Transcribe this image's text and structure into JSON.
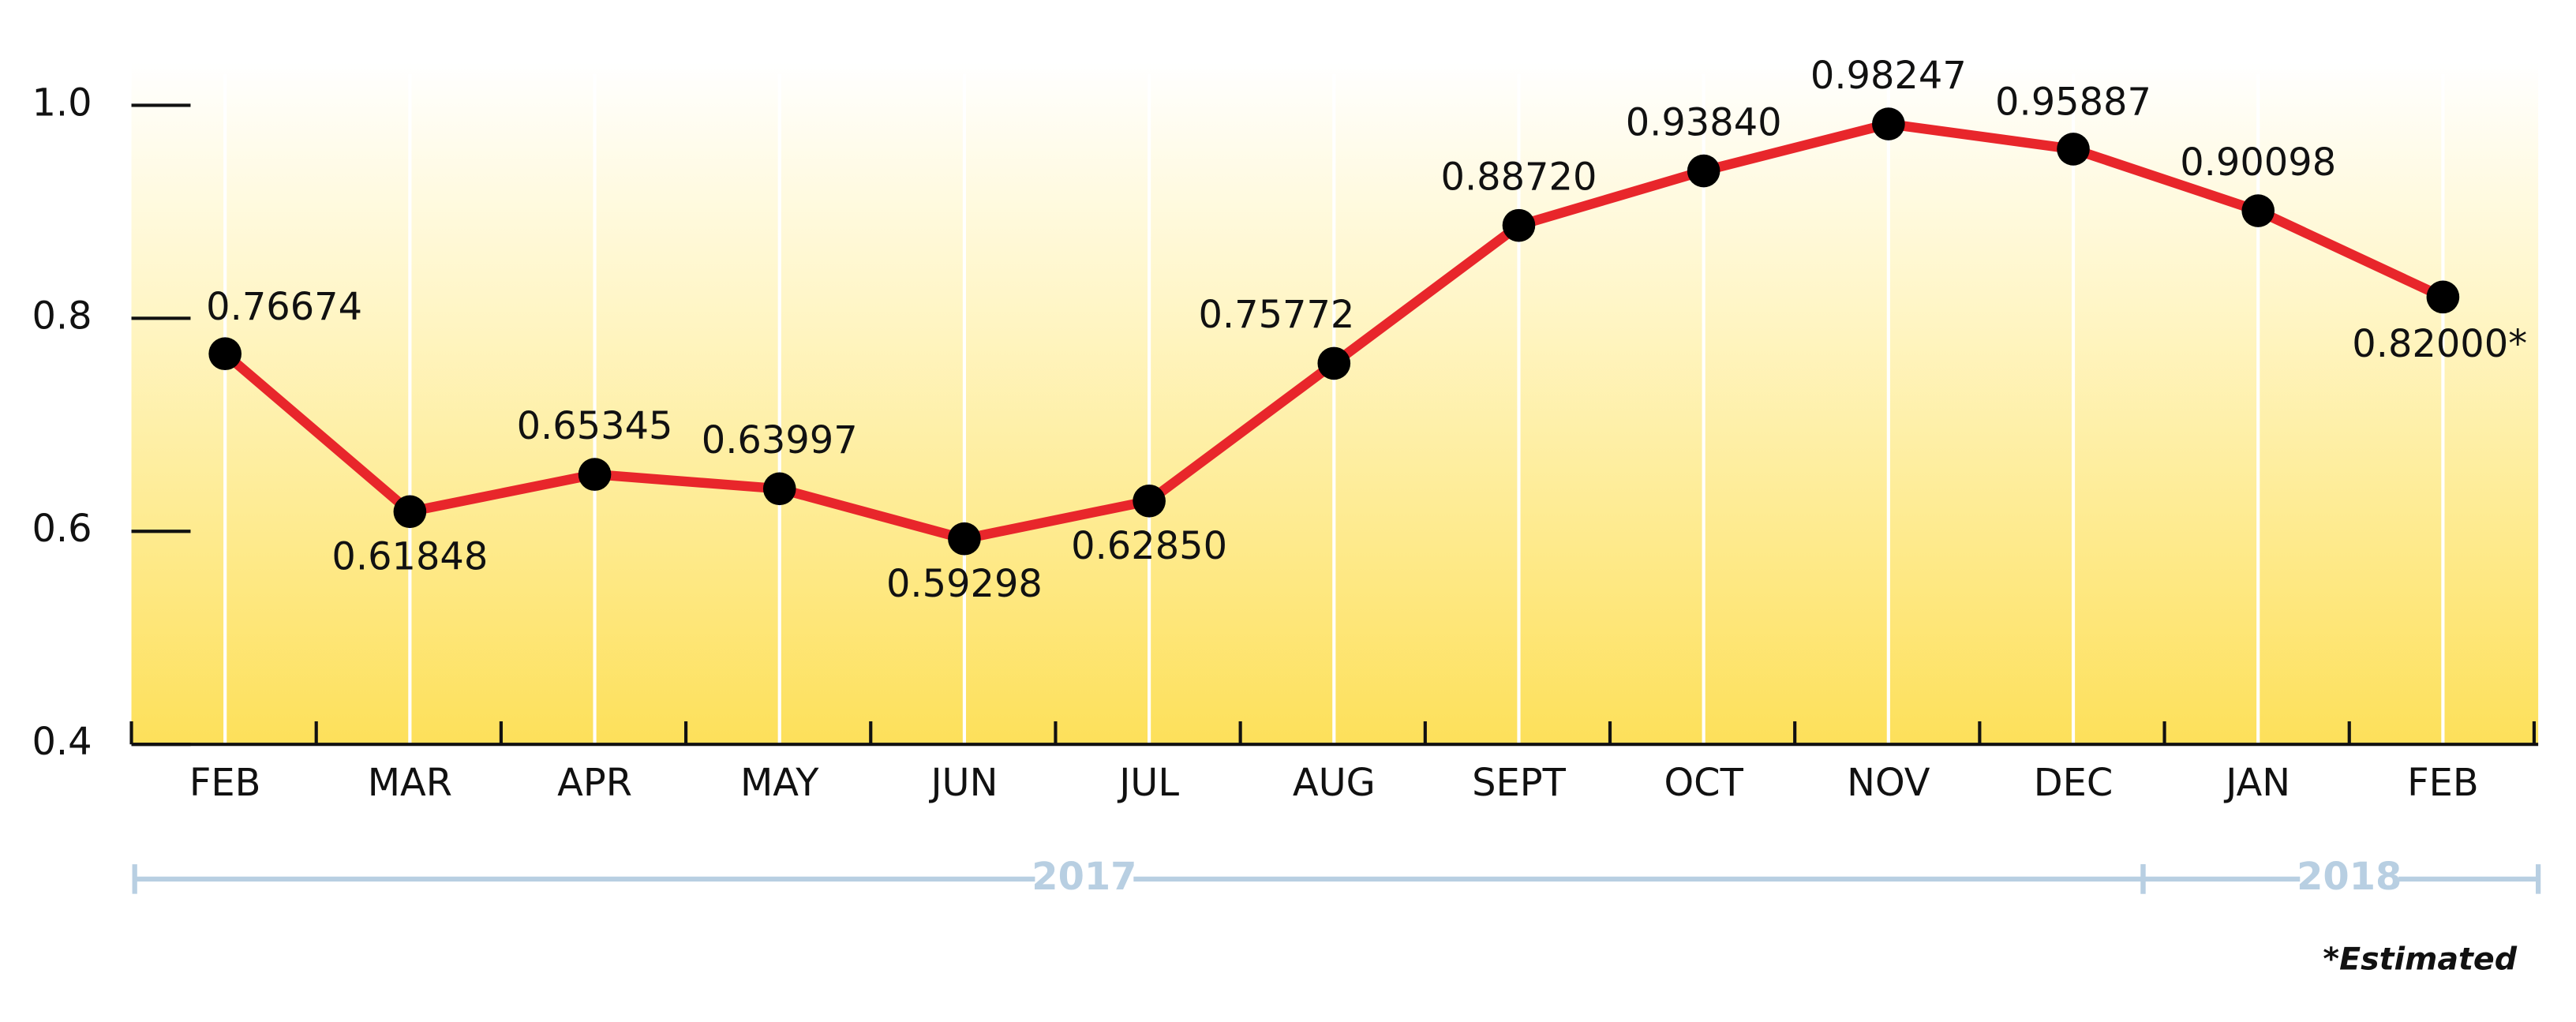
{
  "chart_data": {
    "type": "line",
    "categories": [
      "FEB",
      "MAR",
      "APR",
      "MAY",
      "JUN",
      "JUL",
      "AUG",
      "SEPT",
      "OCT",
      "NOV",
      "DEC",
      "JAN",
      "FEB"
    ],
    "series": [
      {
        "color": "#e8262b",
        "values": [
          0.76674,
          0.61848,
          0.65345,
          0.63997,
          0.59298,
          0.6285,
          0.75772,
          0.8872,
          0.9384,
          0.98247,
          0.95887,
          0.90098,
          0.82
        ],
        "value_labels": [
          "0.76674",
          "0.61848",
          "0.65345",
          "0.63997",
          "0.59298",
          "0.62850",
          "0.75772",
          "0.88720",
          "0.93840",
          "0.98247",
          "0.95887",
          "0.90098",
          "0.82000*"
        ]
      }
    ],
    "ylim": [
      0.4,
      1.0
    ],
    "yticks": [
      0.4,
      0.6,
      0.8,
      {
        "value": 1.0,
        "label": "1.0"
      }
    ],
    "grid": true,
    "years": [
      "2017",
      "2018"
    ],
    "note": "*Estimated"
  }
}
